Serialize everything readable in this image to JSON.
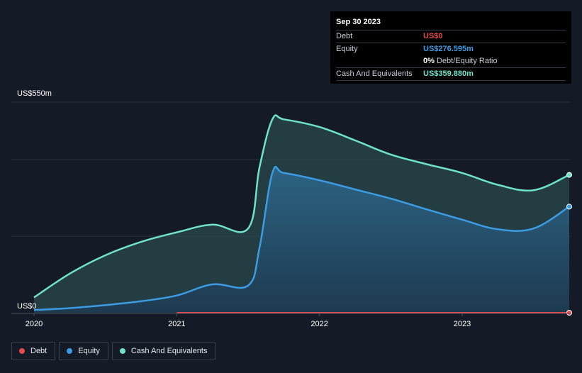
{
  "chart_data": {
    "type": "area",
    "title": "",
    "xlabel": "",
    "ylabel": "",
    "y_unit_top_label": "US$550m",
    "y_unit_bottom_label": "US$0",
    "ylim": [
      0,
      550
    ],
    "xlim": [
      2020.0,
      2023.75
    ],
    "x_ticks": [
      {
        "value": 2020,
        "label": "2020"
      },
      {
        "value": 2021,
        "label": "2021"
      },
      {
        "value": 2022,
        "label": "2022"
      },
      {
        "value": 2023,
        "label": "2023"
      }
    ],
    "gridlines_y": [
      550,
      400,
      200
    ],
    "x": [
      2020.0,
      2020.25,
      2020.5,
      2020.75,
      2021.0,
      2021.25,
      2021.5,
      2021.58,
      2021.67,
      2021.75,
      2022.0,
      2022.25,
      2022.5,
      2022.75,
      2023.0,
      2023.25,
      2023.5,
      2023.75
    ],
    "series": [
      {
        "name": "Debt",
        "color": "#e84a4f",
        "x": [
          2021.0,
          2021.25,
          2021.5,
          2021.75,
          2022.0,
          2022.25,
          2022.5,
          2022.75,
          2023.0,
          2023.25,
          2023.5,
          2023.75
        ],
        "values": [
          0,
          0,
          0,
          0,
          0,
          0,
          0,
          0,
          0,
          0,
          0,
          0
        ]
      },
      {
        "name": "Equity",
        "color": "#3b9ce3",
        "values": [
          7,
          12,
          20,
          30,
          45,
          74,
          71,
          170,
          365,
          365,
          346,
          322,
          298,
          270,
          243,
          218,
          220,
          277
        ]
      },
      {
        "name": "Cash And Equivalents",
        "color": "#6fe3c8",
        "values": [
          40,
          102,
          150,
          185,
          210,
          230,
          220,
          380,
          505,
          505,
          485,
          450,
          413,
          388,
          365,
          334,
          320,
          360
        ]
      }
    ]
  },
  "tooltip": {
    "date": "Sep 30 2023",
    "rows": [
      {
        "label": "Debt",
        "value": "US$0",
        "color": "#e84a4f"
      },
      {
        "label": "Equity",
        "value": "US$276.595m",
        "color": "#3b9ce3"
      },
      {
        "label": "",
        "value": "0%",
        "value_suffix": "Debt/Equity Ratio",
        "color": "#ffffff"
      },
      {
        "label": "Cash And Equivalents",
        "value": "US$359.880m",
        "color": "#6fe3c8"
      }
    ]
  },
  "legend": [
    {
      "label": "Debt",
      "color": "#e84a4f"
    },
    {
      "label": "Equity",
      "color": "#3b9ce3"
    },
    {
      "label": "Cash And Equivalents",
      "color": "#6fe3c8"
    }
  ]
}
